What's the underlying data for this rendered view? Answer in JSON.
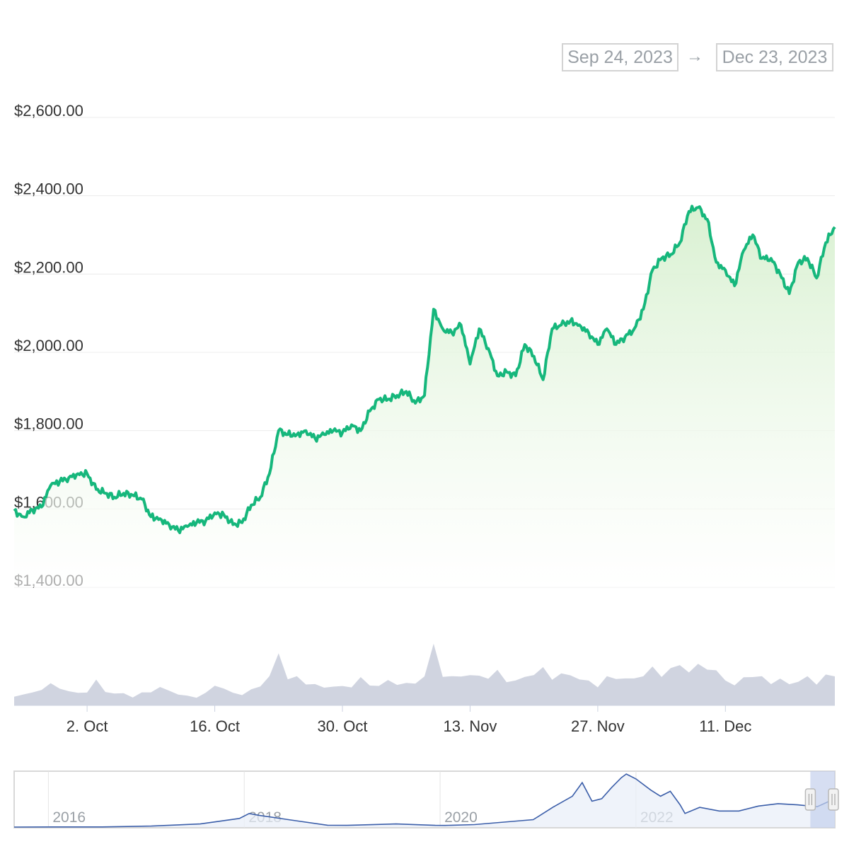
{
  "range_selector": {
    "from": "Sep 24, 2023",
    "arrow": "→",
    "to": "Dec 23, 2023"
  },
  "colors": {
    "price_line": "#16b77c",
    "price_fill": "#d7f0cf",
    "volume_fill": "#c8ccdb",
    "navigator_line": "#3b5ea9",
    "navigator_mask": "#c4d0ec",
    "gridline": "#ececec",
    "axis_text": "#333333",
    "nav_text": "#9aa0a6"
  },
  "chart_data": {
    "type": "area",
    "y_axis": {
      "ticks": [
        "$1,400.00",
        "$1,600.00",
        "$1,800.00",
        "$2,000.00",
        "$2,200.00",
        "$2,400.00",
        "$2,600.00"
      ],
      "tick_values": [
        1400,
        1600,
        1800,
        2000,
        2200,
        2400,
        2600
      ],
      "ylim": [
        1400,
        2600
      ]
    },
    "x_axis": {
      "ticks": [
        "2. Oct",
        "16. Oct",
        "30. Oct",
        "13. Nov",
        "27. Nov",
        "11. Dec"
      ],
      "tick_dates": [
        "2023-10-02",
        "2023-10-16",
        "2023-10-30",
        "2023-11-13",
        "2023-11-27",
        "2023-12-11"
      ],
      "xlim": [
        "2023-09-24",
        "2023-12-23"
      ]
    },
    "price_series": {
      "x": [
        "2023-09-24",
        "2023-09-25",
        "2023-09-26",
        "2023-09-27",
        "2023-09-28",
        "2023-09-29",
        "2023-09-30",
        "2023-10-01",
        "2023-10-02",
        "2023-10-03",
        "2023-10-04",
        "2023-10-05",
        "2023-10-06",
        "2023-10-07",
        "2023-10-08",
        "2023-10-09",
        "2023-10-10",
        "2023-10-11",
        "2023-10-12",
        "2023-10-13",
        "2023-10-14",
        "2023-10-15",
        "2023-10-16",
        "2023-10-17",
        "2023-10-18",
        "2023-10-19",
        "2023-10-20",
        "2023-10-21",
        "2023-10-22",
        "2023-10-23",
        "2023-10-24",
        "2023-10-25",
        "2023-10-26",
        "2023-10-27",
        "2023-10-28",
        "2023-10-29",
        "2023-10-30",
        "2023-10-31",
        "2023-11-01",
        "2023-11-02",
        "2023-11-03",
        "2023-11-04",
        "2023-11-05",
        "2023-11-06",
        "2023-11-07",
        "2023-11-08",
        "2023-11-09",
        "2023-11-10",
        "2023-11-11",
        "2023-11-12",
        "2023-11-13",
        "2023-11-14",
        "2023-11-15",
        "2023-11-16",
        "2023-11-17",
        "2023-11-18",
        "2023-11-19",
        "2023-11-20",
        "2023-11-21",
        "2023-11-22",
        "2023-11-23",
        "2023-11-24",
        "2023-11-25",
        "2023-11-26",
        "2023-11-27",
        "2023-11-28",
        "2023-11-29",
        "2023-11-30",
        "2023-12-01",
        "2023-12-02",
        "2023-12-03",
        "2023-12-04",
        "2023-12-05",
        "2023-12-06",
        "2023-12-07",
        "2023-12-08",
        "2023-12-09",
        "2023-12-10",
        "2023-12-11",
        "2023-12-12",
        "2023-12-13",
        "2023-12-14",
        "2023-12-15",
        "2023-12-16",
        "2023-12-17",
        "2023-12-18",
        "2023-12-19",
        "2023-12-20",
        "2023-12-21",
        "2023-12-22",
        "2023-12-23"
      ],
      "y": [
        1595,
        1580,
        1598,
        1605,
        1660,
        1670,
        1680,
        1690,
        1690,
        1650,
        1640,
        1630,
        1640,
        1635,
        1625,
        1580,
        1575,
        1560,
        1545,
        1555,
        1565,
        1570,
        1590,
        1585,
        1560,
        1565,
        1610,
        1630,
        1690,
        1800,
        1790,
        1790,
        1800,
        1780,
        1790,
        1800,
        1795,
        1815,
        1800,
        1850,
        1880,
        1880,
        1890,
        1900,
        1870,
        1890,
        2110,
        2060,
        2050,
        2070,
        1970,
        2060,
        2010,
        1940,
        1950,
        1940,
        2020,
        1990,
        1930,
        2060,
        2070,
        2080,
        2070,
        2050,
        2020,
        2060,
        2020,
        2040,
        2060,
        2110,
        2210,
        2240,
        2250,
        2280,
        2360,
        2370,
        2340,
        2230,
        2210,
        2170,
        2260,
        2300,
        2240,
        2240,
        2200,
        2150,
        2230,
        2240,
        2190,
        2280,
        2320
      ]
    },
    "volume_series": {
      "values_relative": [
        0.15,
        0.2,
        0.2,
        0.3,
        0.35,
        0.3,
        0.25,
        0.2,
        0.25,
        0.4,
        0.25,
        0.2,
        0.2,
        0.15,
        0.2,
        0.25,
        0.3,
        0.25,
        0.2,
        0.15,
        0.15,
        0.2,
        0.35,
        0.3,
        0.2,
        0.2,
        0.25,
        0.35,
        0.5,
        0.85,
        0.5,
        0.45,
        0.4,
        0.35,
        0.3,
        0.35,
        0.3,
        0.35,
        0.45,
        0.35,
        0.35,
        0.4,
        0.4,
        0.35,
        0.4,
        0.5,
        1.0,
        0.55,
        0.45,
        0.55,
        0.5,
        0.5,
        0.5,
        0.55,
        0.45,
        0.4,
        0.5,
        0.55,
        0.6,
        0.5,
        0.5,
        0.55,
        0.45,
        0.4,
        0.35,
        0.45,
        0.5,
        0.45,
        0.45,
        0.55,
        0.6,
        0.55,
        0.6,
        0.7,
        0.6,
        0.65,
        0.7,
        0.55,
        0.45,
        0.35,
        0.45,
        0.55,
        0.45,
        0.4,
        0.45,
        0.35,
        0.45,
        0.45,
        0.4,
        0.5,
        0.5
      ]
    },
    "navigator": {
      "ticks": [
        "2016",
        "2018",
        "2020",
        "2022"
      ],
      "tick_years": [
        2016,
        2018,
        2020,
        2022
      ],
      "xlim_years": [
        2015.6,
        2023.98
      ],
      "series": {
        "x_years": [
          2015.6,
          2016.0,
          2016.5,
          2017.0,
          2017.5,
          2017.9,
          2018.0,
          2018.1,
          2018.4,
          2018.8,
          2019.0,
          2019.5,
          2019.9,
          2020.0,
          2020.3,
          2020.6,
          2020.9,
          2021.1,
          2021.3,
          2021.4,
          2021.5,
          2021.6,
          2021.7,
          2021.8,
          2021.85,
          2021.95,
          2022.1,
          2022.2,
          2022.3,
          2022.4,
          2022.45,
          2022.6,
          2022.8,
          2023.0,
          2023.2,
          2023.4,
          2023.6,
          2023.8,
          2023.98
        ],
        "y_price": [
          1,
          10,
          14,
          80,
          250,
          700,
          1100,
          950,
          600,
          150,
          140,
          250,
          140,
          130,
          200,
          400,
          600,
          1600,
          2500,
          3600,
          2100,
          2300,
          3200,
          4000,
          4300,
          3900,
          3000,
          2500,
          2900,
          1800,
          1100,
          1600,
          1300,
          1300,
          1700,
          1900,
          1800,
          1650,
          2300
        ]
      },
      "selected_range_years": [
        2023.73,
        2023.98
      ]
    }
  }
}
